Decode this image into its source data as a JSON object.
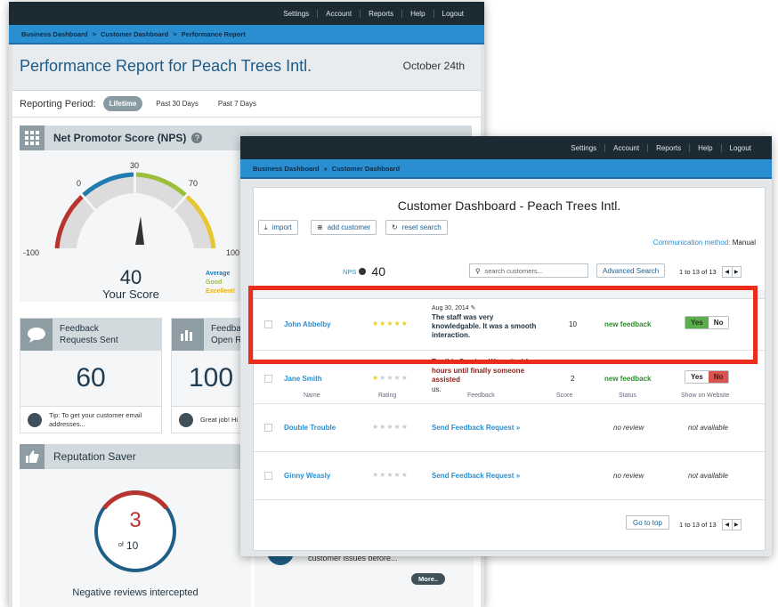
{
  "back": {
    "nav": [
      "Settings",
      "Account",
      "Reports",
      "Help",
      "Logout"
    ],
    "breadcrumb": [
      "Business Dashboard",
      "Customer Dashboard",
      "Performance Report"
    ],
    "title": "Performance Report for Peach Trees Intl.",
    "date": "October 24th",
    "period_label": "Reporting Period:",
    "periods": [
      "Lifetime",
      "Past 30 Days",
      "Past 7 Days"
    ],
    "nps_title": "Net Promotor Score (NPS)",
    "gauge_ticks": [
      "-100",
      "0",
      "30",
      "70",
      "100"
    ],
    "gauge_value": "40",
    "gauge_caption": "Your Score",
    "legend": [
      "Average",
      "Good",
      "Excellent!"
    ],
    "card1_title": "Feedback\nRequests Sent",
    "card1_value": "60",
    "card1_tip": "Tip: To get your customer email\naddresses...",
    "card2_title": "Feedba\nOpen R",
    "card2_value": "100",
    "card2_tip": "Great job! Hi",
    "rep_title": "Reputation Saver",
    "rep_value": "3",
    "rep_of": "of",
    "rep_total": "10",
    "rep_caption": "Negative reviews intercepted",
    "hidden_text": "customer issues before...",
    "more": "More.."
  },
  "front": {
    "nav": [
      "Settings",
      "Account",
      "Reports",
      "Help",
      "Logout"
    ],
    "breadcrumb": [
      "Business Dashboard",
      "Customer Dashboard"
    ],
    "title": "Customer Dashboard - Peach Trees Intl.",
    "buttons": [
      "import",
      "add customer",
      "reset search"
    ],
    "comm_label": "Communication method:",
    "comm_value": "Manual",
    "nps_label": "NPS",
    "nps_value": "40",
    "search_placeholder": "search customers...",
    "advanced": "Advanced Search",
    "pager": "1 to 13 of 13",
    "headers": [
      "Name",
      "Rating",
      "Feedback",
      "Score",
      "Status",
      "Show on Website"
    ],
    "rows": [
      {
        "name": "John Abbelby",
        "rating": 5,
        "date": "Aug 30, 2014",
        "feedback": "The staff was very\nknowledgable. It was a smooth\ninteraction.",
        "score": "10",
        "status": "new feedback",
        "yes": "Yes",
        "no": "No",
        "active": "yes"
      },
      {
        "name": "Jane Smith",
        "rating": 1,
        "date": "",
        "feedback": "Terrible Service. We waited for\nhours until finally someone\nassisted",
        "feedback_extra": "us.",
        "score": "2",
        "status": "new feedback",
        "yes": "Yes",
        "no": "No",
        "active": "no"
      },
      {
        "name": "Double Trouble",
        "rating": 0,
        "action": "Send Feedback Request »",
        "status": "no review",
        "show": "not available"
      },
      {
        "name": "Ginny Weasly",
        "rating": 0,
        "action": "Send Feedback Request »",
        "status": "no review",
        "show": "not available"
      }
    ],
    "go_top": "Go to top",
    "pager_bottom": "1 to 13 of 13"
  },
  "colors": {
    "highlight": "#ec2c1b",
    "accent": "#2a8fd0",
    "nav": "#1c2a33"
  }
}
